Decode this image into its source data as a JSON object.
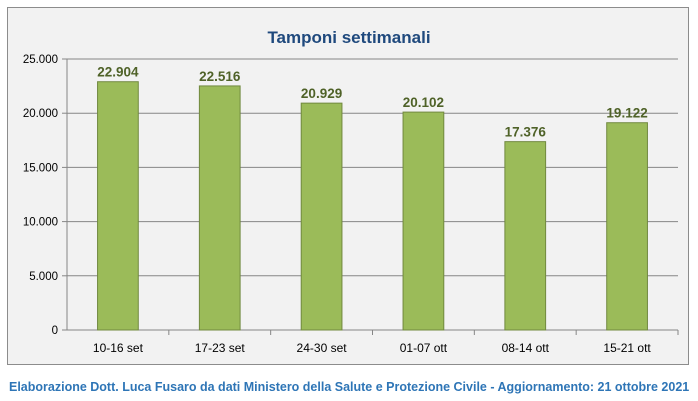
{
  "chart_data": {
    "type": "bar",
    "title": "Tamponi settimanali",
    "categories": [
      "10-16 set",
      "17-23 set",
      "24-30 set",
      "01-07 ott",
      "08-14 ott",
      "15-21 ott"
    ],
    "values": [
      22904,
      22516,
      20929,
      20102,
      17376,
      19122
    ],
    "value_labels": [
      "22.904",
      "22.516",
      "20.929",
      "20.102",
      "17.376",
      "19.122"
    ],
    "yticks": [
      0,
      5000,
      10000,
      15000,
      20000,
      25000
    ],
    "ytick_labels": [
      "0",
      "5.000",
      "10.000",
      "15.000",
      "20.000",
      "25.000"
    ],
    "ylim": [
      0,
      25000
    ],
    "xlabel": "",
    "ylabel": "",
    "grid": true,
    "legend": "none",
    "colors": {
      "bar_fill": "#9bbb59",
      "bar_stroke": "#71893f",
      "value_label": "#4f6228",
      "gridline": "#868686",
      "title": "#1f497d"
    }
  },
  "footer": {
    "credit": "Elaborazione Dott. Luca Fusaro da dati Ministero della Salute e Protezione Civile - Aggiornamento: 21 ottobre 2021"
  }
}
